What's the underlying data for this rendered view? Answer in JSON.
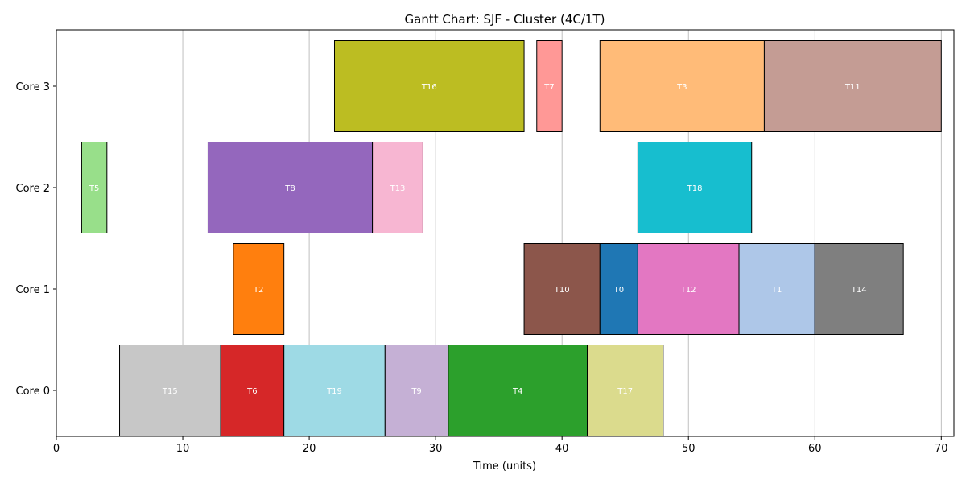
{
  "chart_data": {
    "type": "gantt",
    "title": "Gantt Chart: SJF - Cluster (4C/1T)",
    "xlabel": "Time (units)",
    "ylabel": "",
    "xlim": [
      0,
      71
    ],
    "xticks": [
      0,
      10,
      20,
      30,
      40,
      50,
      60,
      70
    ],
    "grid": "x",
    "rows": [
      "Core 0",
      "Core 1",
      "Core 2",
      "Core 3"
    ],
    "tasks": [
      {
        "label": "T15",
        "row": "Core 0",
        "start": 5,
        "end": 13,
        "color": "#c7c7c7"
      },
      {
        "label": "T6",
        "row": "Core 0",
        "start": 13,
        "end": 18,
        "color": "#d62728"
      },
      {
        "label": "T19",
        "row": "Core 0",
        "start": 18,
        "end": 26,
        "color": "#9edae5"
      },
      {
        "label": "T9",
        "row": "Core 0",
        "start": 26,
        "end": 31,
        "color": "#c5b0d5"
      },
      {
        "label": "T4",
        "row": "Core 0",
        "start": 31,
        "end": 42,
        "color": "#2ca02c"
      },
      {
        "label": "T17",
        "row": "Core 0",
        "start": 42,
        "end": 48,
        "color": "#dbdb8d"
      },
      {
        "label": "T2",
        "row": "Core 1",
        "start": 14,
        "end": 18,
        "color": "#ff7f0e"
      },
      {
        "label": "T10",
        "row": "Core 1",
        "start": 37,
        "end": 43,
        "color": "#8c564b"
      },
      {
        "label": "T0",
        "row": "Core 1",
        "start": 43,
        "end": 46,
        "color": "#1f77b4"
      },
      {
        "label": "T12",
        "row": "Core 1",
        "start": 46,
        "end": 54,
        "color": "#e377c2"
      },
      {
        "label": "T1",
        "row": "Core 1",
        "start": 54,
        "end": 60,
        "color": "#aec7e8"
      },
      {
        "label": "T14",
        "row": "Core 1",
        "start": 60,
        "end": 67,
        "color": "#7f7f7f"
      },
      {
        "label": "T5",
        "row": "Core 2",
        "start": 2,
        "end": 4,
        "color": "#98df8a"
      },
      {
        "label": "T8",
        "row": "Core 2",
        "start": 12,
        "end": 25,
        "color": "#9467bd"
      },
      {
        "label": "T13",
        "row": "Core 2",
        "start": 25,
        "end": 29,
        "color": "#f7b6d2"
      },
      {
        "label": "T18",
        "row": "Core 2",
        "start": 46,
        "end": 55,
        "color": "#17becf"
      },
      {
        "label": "T16",
        "row": "Core 3",
        "start": 22,
        "end": 37,
        "color": "#bcbd22"
      },
      {
        "label": "T7",
        "row": "Core 3",
        "start": 38,
        "end": 40,
        "color": "#ff9896"
      },
      {
        "label": "T3",
        "row": "Core 3",
        "start": 43,
        "end": 56,
        "color": "#ffbb78"
      },
      {
        "label": "T11",
        "row": "Core 3",
        "start": 56,
        "end": 70,
        "color": "#c49c94"
      }
    ]
  }
}
